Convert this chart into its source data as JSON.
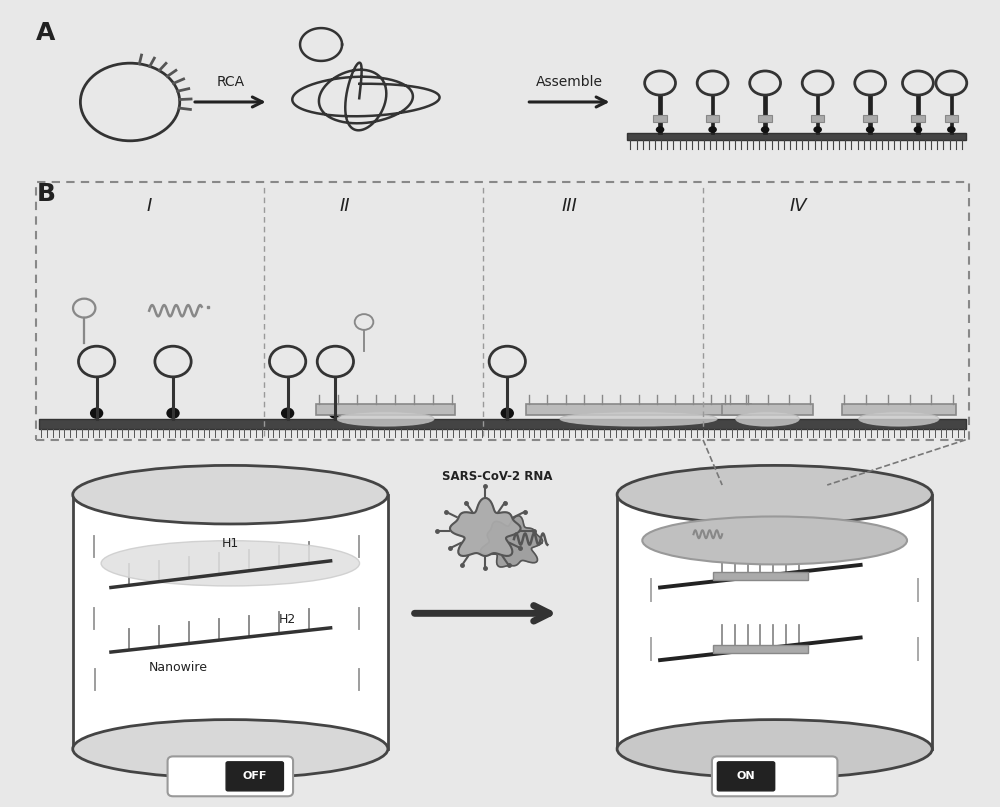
{
  "bg_color": "#e8e8e8",
  "panel_bg": "#ffffff",
  "dark_color": "#222222",
  "gray_color": "#888888",
  "light_gray": "#cccccc",
  "med_gray": "#aaaaaa",
  "dark_gray": "#555555",
  "panel_A_label": "A",
  "panel_B_label": "B",
  "rca_label": "RCA",
  "assemble_label": "Assemble",
  "section_labels": [
    "I",
    "II",
    "III",
    "IV"
  ],
  "sars_label": "SARS-CoV-2 RNA",
  "h1_label": "H1",
  "h2_label": "H2",
  "nanowire_label": "Nanowire",
  "off_label": "OFF",
  "on_label": "ON"
}
